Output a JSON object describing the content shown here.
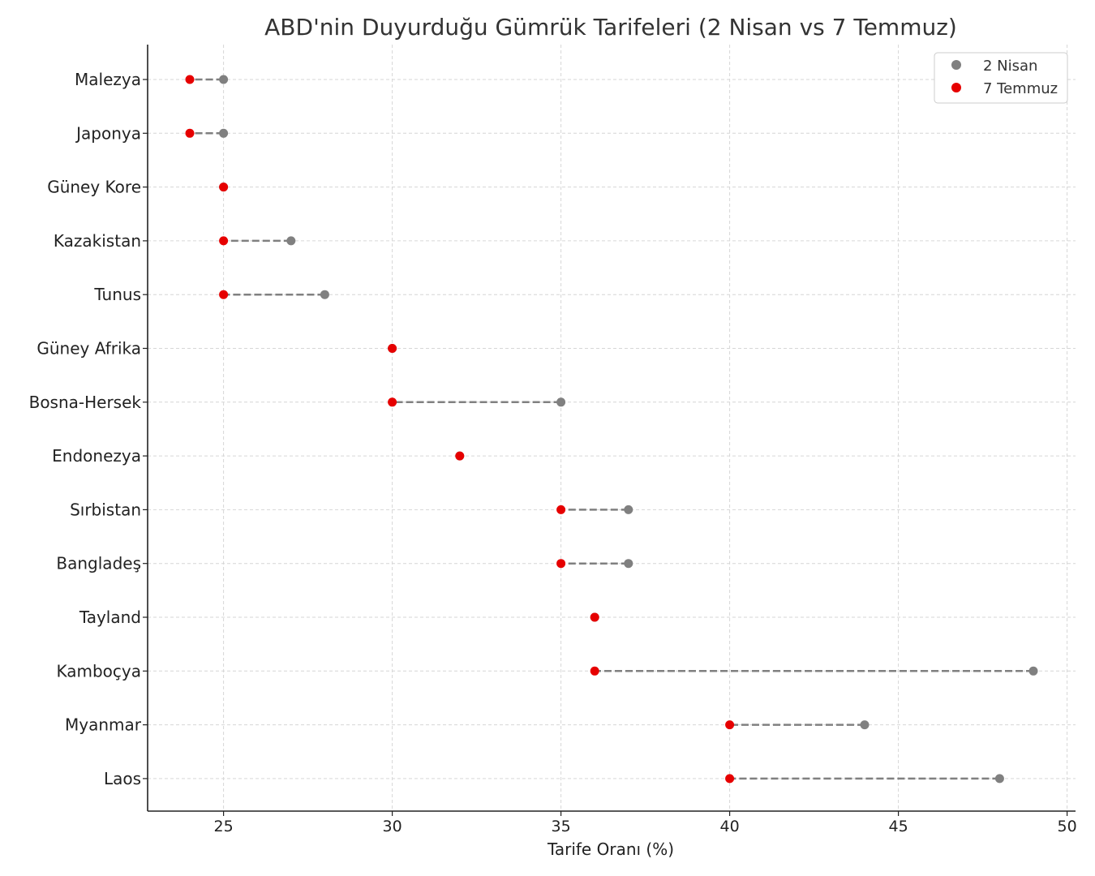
{
  "chart_data": {
    "type": "dumbbell",
    "title": "ABD'nin Duyurduğu Gümrük Tarifeleri (2 Nisan vs 7 Temmuz)",
    "xlabel": "Tarife Oranı (%)",
    "ylabel": "",
    "xlim": [
      22.75,
      50.25
    ],
    "xticks": [
      "25",
      "30",
      "35",
      "40",
      "45",
      "50"
    ],
    "grid": true,
    "legend_position": "top-right",
    "categories": [
      "Malezya",
      "Japonya",
      "Güney Kore",
      "Kazakistan",
      "Tunus",
      "Güney Afrika",
      "Bosna-Hersek",
      "Endonezya",
      "Sırbistan",
      "Bangladeş",
      "Tayland",
      "Kamboçya",
      "Myanmar",
      "Laos"
    ],
    "series": [
      {
        "name": "2 Nisan",
        "color": "#808080",
        "values": [
          25,
          25,
          25,
          27,
          28,
          30,
          35,
          32,
          37,
          37,
          36,
          49,
          44,
          48
        ]
      },
      {
        "name": "7 Temmuz",
        "color": "#e60000",
        "values": [
          24,
          24,
          25,
          25,
          25,
          30,
          30,
          32,
          35,
          35,
          36,
          36,
          40,
          40
        ]
      }
    ]
  }
}
